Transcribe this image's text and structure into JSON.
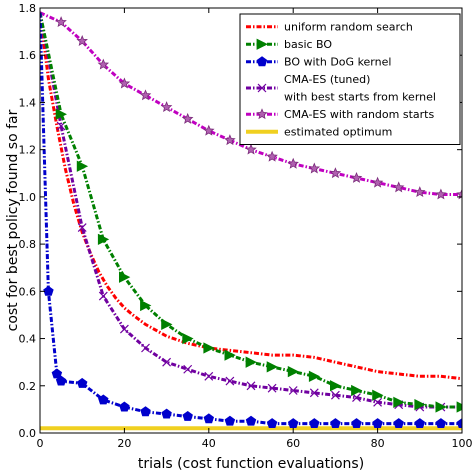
{
  "chart_data": {
    "type": "line",
    "xlabel": "trials (cost function evaluations)",
    "ylabel": "cost for best policy found so far",
    "xlim": [
      0,
      100
    ],
    "ylim": [
      0,
      1.8
    ],
    "xticks": [
      0,
      20,
      40,
      60,
      80,
      100
    ],
    "yticks": [
      0.0,
      0.2,
      0.4,
      0.6,
      0.8,
      1.0,
      1.2,
      1.4,
      1.6,
      1.8
    ],
    "grid": false,
    "legend_position": "top-right",
    "series": [
      {
        "name": "uniform random search",
        "color": "#ff0000",
        "style": "dash-dot",
        "marker": "none",
        "x": [
          0,
          2,
          4,
          6,
          8,
          10,
          12,
          14,
          16,
          18,
          20,
          22,
          25,
          28,
          30,
          35,
          40,
          45,
          50,
          55,
          60,
          65,
          70,
          75,
          80,
          85,
          90,
          95,
          100
        ],
        "y": [
          1.78,
          1.5,
          1.3,
          1.12,
          0.97,
          0.85,
          0.76,
          0.68,
          0.62,
          0.57,
          0.53,
          0.5,
          0.46,
          0.43,
          0.41,
          0.38,
          0.36,
          0.35,
          0.34,
          0.33,
          0.33,
          0.32,
          0.3,
          0.28,
          0.26,
          0.25,
          0.24,
          0.24,
          0.23
        ]
      },
      {
        "name": "basic BO",
        "color": "#008000",
        "style": "dash-dot",
        "marker": "triangle-right",
        "x": [
          0,
          5,
          10,
          15,
          20,
          25,
          30,
          35,
          40,
          45,
          50,
          55,
          60,
          65,
          70,
          75,
          80,
          85,
          90,
          95,
          100
        ],
        "y": [
          1.78,
          1.35,
          1.13,
          0.82,
          0.66,
          0.54,
          0.46,
          0.4,
          0.36,
          0.33,
          0.3,
          0.28,
          0.26,
          0.24,
          0.2,
          0.18,
          0.16,
          0.13,
          0.12,
          0.11,
          0.11
        ]
      },
      {
        "name": "BO with DoG kernel",
        "color": "#0000cc",
        "style": "dash-dot",
        "marker": "pentagon",
        "x": [
          0,
          2,
          4,
          5,
          10,
          15,
          20,
          25,
          30,
          35,
          40,
          45,
          50,
          55,
          60,
          65,
          70,
          75,
          80,
          85,
          90,
          95,
          100
        ],
        "y": [
          1.78,
          0.6,
          0.25,
          0.22,
          0.21,
          0.14,
          0.11,
          0.09,
          0.08,
          0.07,
          0.06,
          0.05,
          0.05,
          0.04,
          0.04,
          0.04,
          0.04,
          0.04,
          0.04,
          0.04,
          0.04,
          0.04,
          0.04
        ]
      },
      {
        "name": "CMA-ES (tuned)\nwith best starts from kernel",
        "color": "#7000a0",
        "style": "dash-dot",
        "marker": "x",
        "x": [
          0,
          5,
          10,
          15,
          20,
          25,
          30,
          35,
          40,
          45,
          50,
          55,
          60,
          65,
          70,
          75,
          80,
          85,
          90,
          95,
          100
        ],
        "y": [
          1.78,
          1.3,
          0.87,
          0.58,
          0.44,
          0.36,
          0.3,
          0.27,
          0.24,
          0.22,
          0.2,
          0.19,
          0.18,
          0.17,
          0.16,
          0.15,
          0.13,
          0.12,
          0.11,
          0.11,
          0.11
        ]
      },
      {
        "name": "CMA-ES with random starts",
        "color": "#c000c0",
        "style": "dash-dot",
        "marker": "star",
        "x": [
          0,
          5,
          10,
          15,
          20,
          25,
          30,
          35,
          40,
          45,
          50,
          55,
          60,
          65,
          70,
          75,
          80,
          85,
          90,
          95,
          100
        ],
        "y": [
          1.78,
          1.74,
          1.66,
          1.56,
          1.48,
          1.43,
          1.38,
          1.33,
          1.28,
          1.24,
          1.2,
          1.17,
          1.14,
          1.12,
          1.1,
          1.08,
          1.06,
          1.04,
          1.02,
          1.01,
          1.01
        ]
      },
      {
        "name": "estimated optimum",
        "color": "#f0d020",
        "style": "solid",
        "marker": "none",
        "x": [
          0,
          100
        ],
        "y": [
          0.02,
          0.02
        ]
      }
    ]
  }
}
